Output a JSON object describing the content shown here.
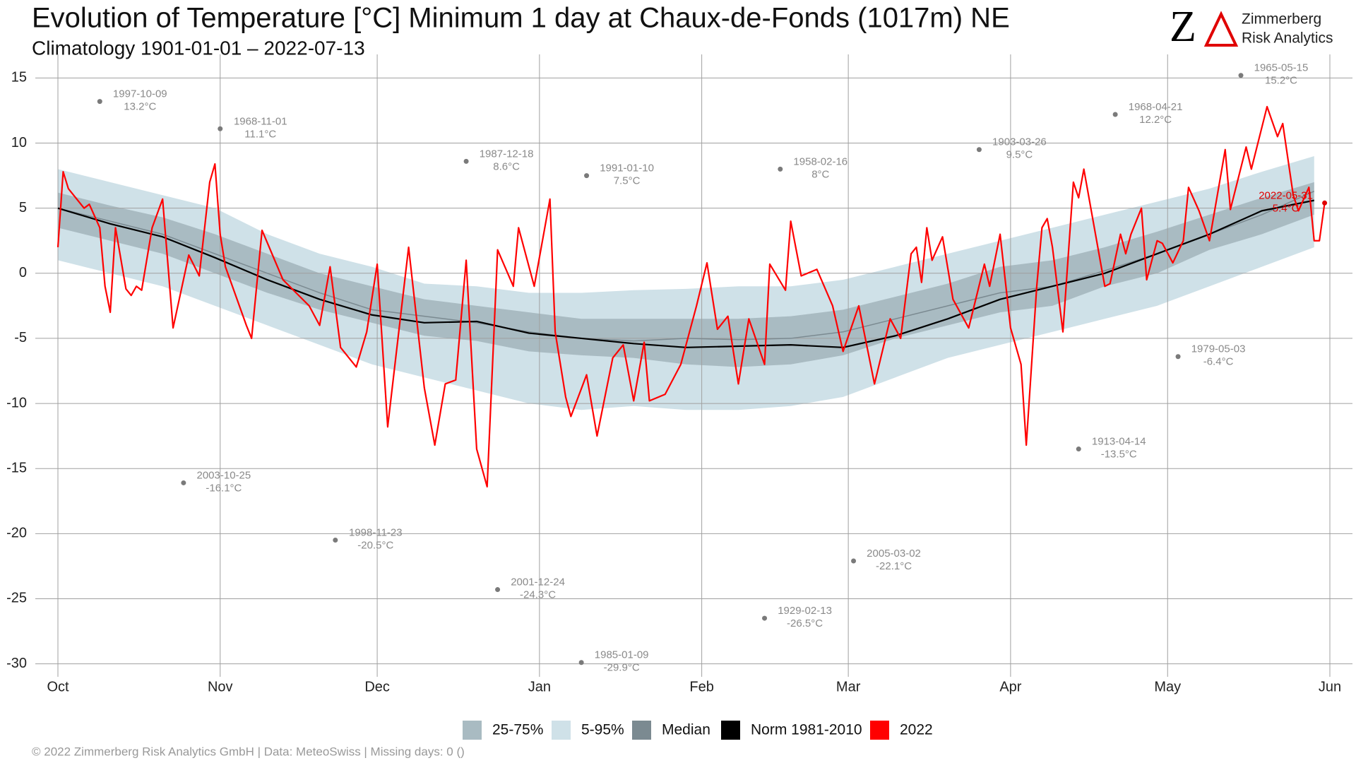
{
  "chart_data": {
    "type": "line",
    "title": "Evolution of Temperature [°C] Minimum 1 day at Chaux-de-Fonds (1017m) NE",
    "subtitle": "Climatology 1901-01-01 – 2022-07-13",
    "footer": "©  2022 Zimmerberg Risk Analytics GmbH | Data: MeteoSwiss | Missing days: 0 ()",
    "logo": {
      "mark": "Z",
      "line1": "Zimmerberg",
      "line2": "Risk Analytics",
      "color": "#e00000"
    },
    "xlim": [
      0,
      243
    ],
    "ylim": [
      -31,
      16
    ],
    "xticks": [
      {
        "value": 0,
        "label": "Oct"
      },
      {
        "value": 31,
        "label": "Nov"
      },
      {
        "value": 61,
        "label": "Dec"
      },
      {
        "value": 92,
        "label": "Jan"
      },
      {
        "value": 123,
        "label": "Feb"
      },
      {
        "value": 151,
        "label": "Mar"
      },
      {
        "value": 182,
        "label": "Apr"
      },
      {
        "value": 212,
        "label": "May"
      },
      {
        "value": 243,
        "label": "Jun"
      }
    ],
    "yticks": [
      15,
      10,
      5,
      0,
      -5,
      -10,
      -15,
      -20,
      -25,
      -30
    ],
    "grid": true,
    "band_x": [
      0,
      10,
      20,
      30,
      40,
      50,
      60,
      70,
      80,
      90,
      100,
      110,
      120,
      130,
      140,
      150,
      160,
      170,
      180,
      190,
      200,
      210,
      220,
      230,
      240
    ],
    "bands": [
      {
        "name": "25-75%",
        "color": "#a9bbc2",
        "lower": [
          3.5,
          2.5,
          1.5,
          0,
          -1.5,
          -2.8,
          -3.8,
          -4.8,
          -5.2,
          -6,
          -6.3,
          -6.5,
          -7,
          -7.2,
          -7,
          -6.3,
          -5,
          -4,
          -3,
          -2.5,
          -1,
          0,
          1.8,
          3,
          4.5
        ],
        "upper": [
          6.2,
          5.2,
          4.3,
          3,
          1.5,
          0,
          -1,
          -2,
          -2.5,
          -3,
          -3.5,
          -3.5,
          -3.5,
          -3.5,
          -3.3,
          -2.8,
          -1.8,
          -0.8,
          0.5,
          1,
          2,
          3.2,
          4.5,
          5.8,
          7
        ]
      },
      {
        "name": "5-95%",
        "color": "#cfe1e8",
        "lower": [
          1,
          0,
          -1,
          -2.5,
          -4,
          -5.5,
          -7,
          -8,
          -9,
          -10,
          -10.5,
          -10.2,
          -10.5,
          -10.5,
          -10.2,
          -9.5,
          -8,
          -6.5,
          -5.5,
          -4.5,
          -3.5,
          -2.5,
          -1,
          0.5,
          2
        ],
        "upper": [
          8,
          7,
          6,
          5,
          3,
          1.5,
          0.5,
          -0.8,
          -1,
          -1.5,
          -1.5,
          -1.3,
          -1.2,
          -1,
          -1,
          -0.5,
          0.5,
          1.5,
          2.5,
          3.5,
          4.5,
          5.5,
          6.5,
          7.8,
          9
        ]
      }
    ],
    "series": [
      {
        "name": "Median",
        "color": "#7b8a91",
        "values": [
          5,
          4,
          3,
          1.5,
          0,
          -1.5,
          -2.8,
          -3.3,
          -3.8,
          -4.5,
          -5,
          -5.2,
          -5,
          -5.1,
          -5,
          -4.5,
          -3.5,
          -2.5,
          -1.5,
          -1,
          0.2,
          1.5,
          3,
          4.5,
          6.3
        ]
      },
      {
        "name": "Norm 1981-2010",
        "color": "#000000",
        "values": [
          5,
          3.8,
          2.8,
          1.2,
          -0.5,
          -2,
          -3.2,
          -3.8,
          -3.7,
          -4.6,
          -5,
          -5.4,
          -5.7,
          -5.6,
          -5.5,
          -5.7,
          -4.8,
          -3.5,
          -2,
          -1,
          0,
          1.5,
          3,
          4.8,
          5.6
        ]
      },
      {
        "name": "2022",
        "color": "#ff0000",
        "x": [
          0,
          1,
          2,
          5,
          6,
          8,
          9,
          10,
          11,
          13,
          14,
          15,
          16,
          18,
          20,
          22,
          25,
          27,
          29,
          30,
          31,
          32,
          36,
          37,
          39,
          43,
          48,
          50,
          52,
          54,
          57,
          59,
          61,
          63,
          67,
          70,
          72,
          74,
          76,
          78,
          80,
          82,
          84,
          87,
          88,
          91,
          94,
          95,
          97,
          98,
          101,
          103,
          106,
          108,
          110,
          112,
          113,
          116,
          119,
          122,
          124,
          126,
          128,
          130,
          132,
          135,
          136,
          139,
          140,
          142,
          145,
          148,
          150,
          153,
          156,
          159,
          161,
          163,
          164,
          165,
          166,
          167,
          169,
          171,
          174,
          177,
          178,
          180,
          182,
          184,
          185,
          187,
          188,
          189,
          190,
          192,
          194,
          195,
          196,
          198,
          200,
          201,
          203,
          204,
          205,
          207,
          208,
          210,
          211,
          213,
          215,
          216,
          218,
          220,
          223,
          224,
          227,
          228,
          231,
          233,
          234,
          236,
          237,
          239,
          240,
          241,
          242
        ],
        "values": [
          2,
          7.8,
          6.5,
          5,
          5.3,
          3.5,
          -1,
          -3,
          3.5,
          -1.2,
          -1.7,
          -1,
          -1.3,
          3.5,
          5.7,
          -4.2,
          1.4,
          -0.2,
          7,
          8.4,
          3,
          0.5,
          -4,
          -5,
          3.3,
          -0.5,
          -2.5,
          -4,
          0.5,
          -5.7,
          -7.2,
          -4.5,
          0.7,
          -11.8,
          2,
          -8.8,
          -13.2,
          -8.5,
          -8.2,
          1,
          -13.5,
          -16.4,
          1.8,
          -1,
          3.5,
          -1,
          5.7,
          -4.5,
          -9.5,
          -11,
          -7.8,
          -12.5,
          -6.5,
          -5.5,
          -9.8,
          -5.3,
          -9.8,
          -9.3,
          -7,
          -2.5,
          0.8,
          -4.3,
          -3.3,
          -8.5,
          -3.5,
          -7,
          0.7,
          -1.3,
          4,
          -0.2,
          0.3,
          -2.5,
          -6,
          -2.5,
          -8.5,
          -3.5,
          -5,
          1.5,
          2,
          -0.7,
          3.5,
          1,
          2.8,
          -2,
          -4.2,
          0.7,
          -1,
          3,
          -4.2,
          -7,
          -13.2,
          -1,
          3.5,
          4.2,
          2,
          -4.5,
          7,
          5.8,
          8,
          3.5,
          -1,
          -0.8,
          3,
          1.5,
          3,
          5,
          -0.5,
          2.5,
          2.3,
          0.8,
          2.5,
          6.6,
          4.8,
          2.5,
          9.5,
          4.9,
          9.7,
          8,
          12.8,
          10.5,
          11.5,
          6,
          4.8,
          6.6,
          2.5,
          2.5,
          5.4
        ]
      }
    ],
    "records": [
      {
        "x": 8,
        "date": "1997-10-09",
        "value": 13.2,
        "label": "13.2°C"
      },
      {
        "x": 24,
        "date": "2003-10-25",
        "value": -16.1,
        "label": "-16.1°C"
      },
      {
        "x": 31,
        "date": "1968-11-01",
        "value": 11.1,
        "label": "11.1°C"
      },
      {
        "x": 53,
        "date": "1998-11-23",
        "value": -20.5,
        "label": "-20.5°C"
      },
      {
        "x": 78,
        "date": "1987-12-18",
        "value": 8.6,
        "label": "8.6°C"
      },
      {
        "x": 84,
        "date": "2001-12-24",
        "value": -24.3,
        "label": "-24.3°C"
      },
      {
        "x": 101,
        "date": "1991-01-10",
        "value": 7.5,
        "label": "7.5°C"
      },
      {
        "x": 100,
        "date": "1985-01-09",
        "value": -29.9,
        "label": "-29.9°C"
      },
      {
        "x": 138,
        "date": "1958-02-16",
        "value": 8,
        "label": "8°C"
      },
      {
        "x": 135,
        "date": "1929-02-13",
        "value": -26.5,
        "label": "-26.5°C"
      },
      {
        "x": 152,
        "date": "2005-03-02",
        "value": -22.1,
        "label": "-22.1°C"
      },
      {
        "x": 176,
        "date": "1903-03-26",
        "value": 9.5,
        "label": "9.5°C"
      },
      {
        "x": 195,
        "date": "1913-04-14",
        "value": -13.5,
        "label": "-13.5°C"
      },
      {
        "x": 202,
        "date": "1968-04-21",
        "value": 12.2,
        "label": "12.2°C"
      },
      {
        "x": 214,
        "date": "1979-05-03",
        "value": -6.4,
        "label": "-6.4°C"
      },
      {
        "x": 226,
        "date": "1965-05-15",
        "value": 15.2,
        "label": "15.2°C"
      },
      {
        "x": 242,
        "date": "2022-05-31",
        "value": 5.4,
        "label": "5.4°C",
        "color": "#e00000"
      }
    ],
    "legend": [
      "25-75%",
      "5-95%",
      "Median",
      "Norm 1981-2010",
      "2022"
    ]
  }
}
